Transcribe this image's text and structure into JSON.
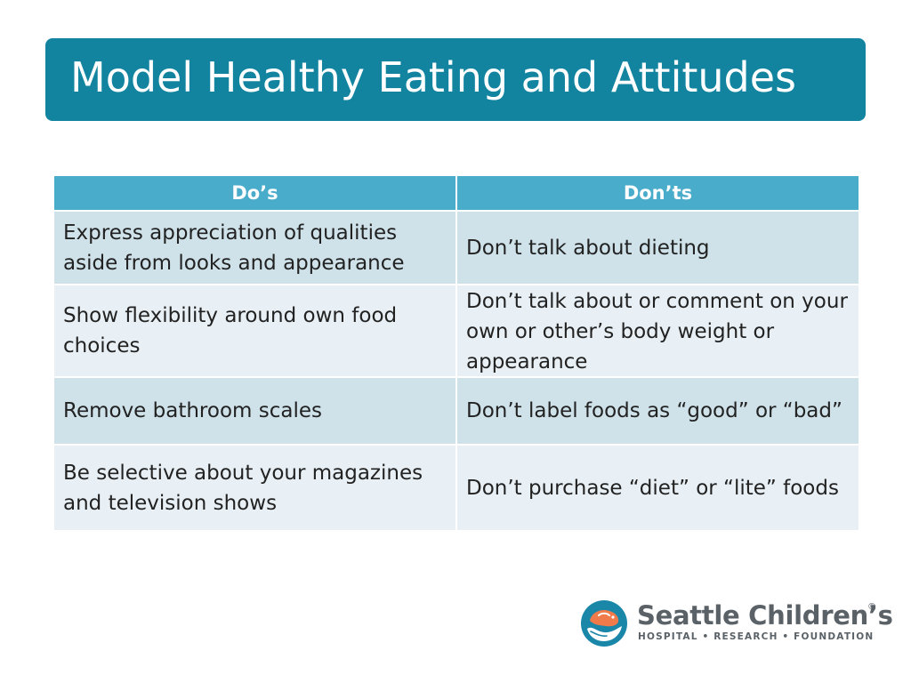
{
  "slide": {
    "title": "Model Healthy Eating and Attitudes"
  },
  "table": {
    "headers": [
      "Do’s",
      "Don’ts"
    ],
    "rows": [
      [
        "Express appreciation of qualities aside from looks and appearance",
        "Don’t talk about dieting"
      ],
      [
        "Show flexibility around own food choices",
        "Don’t talk about or comment on your own or other’s body weight or appearance"
      ],
      [
        "Remove bathroom scales",
        "Don’t label foods as “good” or “bad”"
      ],
      [
        "Be selective about your magazines and television shows",
        "Don’t purchase “diet” or “lite” foods"
      ]
    ]
  },
  "logo": {
    "name": "Seattle Children’s",
    "registered_mark": "®",
    "tagline": "HOSPITAL • RESEARCH • FOUNDATION",
    "icon": "seattle-childrens-whale-hand-logo-icon"
  },
  "colors": {
    "title_banner": "#1284a0",
    "header_row": "#4aaccb",
    "row_dark": "#cfe2ea",
    "row_light": "#e8f0f5",
    "logo_text": "#5a6268",
    "logo_orange": "#f07a4a",
    "logo_teal": "#1a86a8"
  }
}
